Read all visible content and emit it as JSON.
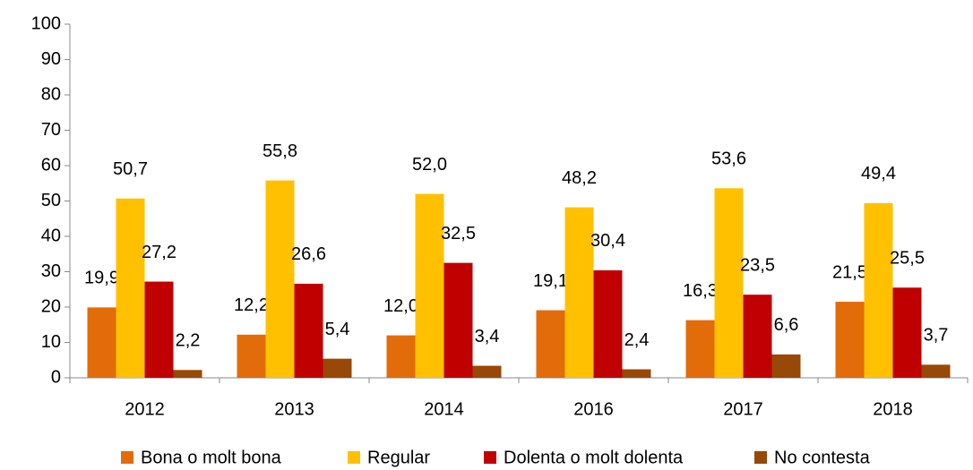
{
  "chart_data": {
    "type": "bar",
    "categories": [
      "2012",
      "2013",
      "2014",
      "2016",
      "2017",
      "2018"
    ],
    "series": [
      {
        "name": "Bona o molt bona",
        "color": "#e36c0a",
        "values": [
          19.9,
          12.2,
          12.0,
          19.1,
          16.3,
          21.5
        ],
        "value_labels": [
          "19,9",
          "12,2",
          "12,0",
          "19,1",
          "16,3",
          "21,5"
        ]
      },
      {
        "name": "Regular",
        "color": "#ffc000",
        "values": [
          50.7,
          55.8,
          52.0,
          48.2,
          53.6,
          49.4
        ],
        "value_labels": [
          "50,7",
          "55,8",
          "52,0",
          "48,2",
          "53,6",
          "49,4"
        ]
      },
      {
        "name": "Dolenta o molt dolenta",
        "color": "#c00000",
        "values": [
          27.2,
          26.6,
          32.5,
          30.4,
          23.5,
          25.5
        ],
        "value_labels": [
          "27,2",
          "26,6",
          "32,5",
          "30,4",
          "23,5",
          "25,5"
        ]
      },
      {
        "name": "No contesta",
        "color": "#984807",
        "values": [
          2.2,
          5.4,
          3.4,
          2.4,
          6.6,
          3.7
        ],
        "value_labels": [
          "2,2",
          "5,4",
          "3,4",
          "2,4",
          "6,6",
          "3,7"
        ]
      }
    ],
    "ylim": [
      0,
      100
    ],
    "yticks": [
      0,
      10,
      20,
      30,
      40,
      50,
      60,
      70,
      80,
      90,
      100
    ],
    "grid": false,
    "legend": "bottom"
  }
}
